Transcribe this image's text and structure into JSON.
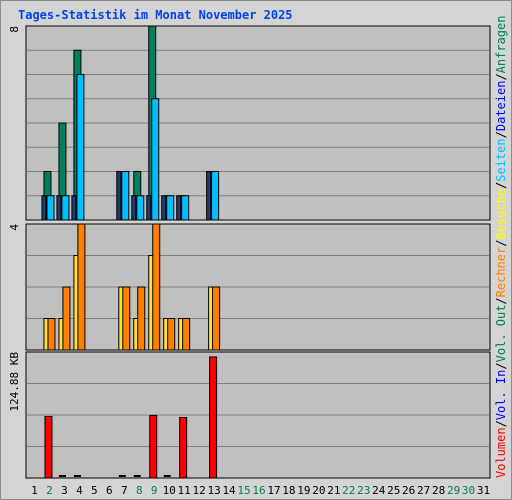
{
  "title": "Tages-Statistik im Monat November 2025",
  "colors": {
    "background": "#c0c0c0",
    "frame": "#d4d4d4",
    "grid": "#808080",
    "title": "#0044ee",
    "axis_day": "#000000",
    "axis_weekend": "#008040",
    "anfragen": "#00805c",
    "dateien": "#0000ff",
    "dateien_bar": "#00c0ff",
    "seiten": "#00c0ff",
    "seiten_bar": "#1e3c6e",
    "besuche": "#ffff00",
    "besuche_bar": "#ffe040",
    "rechner": "#ff8000",
    "vol_out": "#008040",
    "vol_in": "#0000ff",
    "volumen": "#ff0000"
  },
  "legend": {
    "anfragen": "Anfragen",
    "dateien": "Dateien",
    "seiten": "Seiten",
    "besuche": "Besuche",
    "rechner": "Rechner",
    "vol_out": "Vol. Out",
    "vol_in": "Vol. In",
    "volumen": "Volumen",
    "sep": "/"
  },
  "chart_data": [
    {
      "type": "bar",
      "panel": "hits",
      "ymax_label": "8",
      "ylim": [
        0,
        8
      ],
      "categories": [
        "1",
        "2",
        "3",
        "4",
        "5",
        "6",
        "7",
        "8",
        "9",
        "10",
        "11",
        "12",
        "13",
        "14",
        "15",
        "16",
        "17",
        "18",
        "19",
        "20",
        "21",
        "22",
        "23",
        "24",
        "25",
        "26",
        "27",
        "28",
        "29",
        "30",
        "31"
      ],
      "weekend_days": [
        2,
        8,
        9,
        15,
        16,
        22,
        23,
        29,
        30
      ],
      "series": [
        {
          "name": "Anfragen",
          "values": [
            0,
            2,
            4,
            7,
            0,
            0,
            2,
            2,
            8,
            1,
            1,
            0,
            2,
            0,
            0,
            0,
            0,
            0,
            0,
            0,
            0,
            0,
            0,
            0,
            0,
            0,
            0,
            0,
            0,
            0,
            0
          ]
        },
        {
          "name": "Dateien",
          "values": [
            0,
            1,
            1,
            6,
            0,
            0,
            2,
            1,
            5,
            1,
            1,
            0,
            2,
            0,
            0,
            0,
            0,
            0,
            0,
            0,
            0,
            0,
            0,
            0,
            0,
            0,
            0,
            0,
            0,
            0,
            0
          ]
        },
        {
          "name": "Seiten",
          "values": [
            0,
            1,
            1,
            1,
            0,
            0,
            2,
            1,
            1,
            1,
            1,
            0,
            2,
            0,
            0,
            0,
            0,
            0,
            0,
            0,
            0,
            0,
            0,
            0,
            0,
            0,
            0,
            0,
            0,
            0,
            0
          ]
        }
      ]
    },
    {
      "type": "bar",
      "panel": "visits",
      "ymax_label": "4",
      "ylim": [
        0,
        4
      ],
      "series": [
        {
          "name": "Besuche",
          "values": [
            0,
            1,
            1,
            3,
            0,
            0,
            2,
            1,
            3,
            1,
            1,
            0,
            2,
            0,
            0,
            0,
            0,
            0,
            0,
            0,
            0,
            0,
            0,
            0,
            0,
            0,
            0,
            0,
            0,
            0,
            0
          ]
        },
        {
          "name": "Rechner",
          "values": [
            0,
            1,
            2,
            4,
            0,
            0,
            2,
            2,
            4,
            1,
            1,
            0,
            2,
            0,
            0,
            0,
            0,
            0,
            0,
            0,
            0,
            0,
            0,
            0,
            0,
            0,
            0,
            0,
            0,
            0,
            0
          ]
        }
      ]
    },
    {
      "type": "bar",
      "panel": "volume",
      "ymax_label": "124.88 KB",
      "ylim": [
        0,
        124.88
      ],
      "series": [
        {
          "name": "Volumen",
          "values": [
            0,
            61,
            1,
            1,
            0,
            0,
            1,
            1,
            62,
            1,
            60,
            0,
            120,
            0,
            0,
            0,
            0,
            0,
            0,
            0,
            0,
            0,
            0,
            0,
            0,
            0,
            0,
            0,
            0,
            0,
            0
          ]
        }
      ]
    }
  ]
}
